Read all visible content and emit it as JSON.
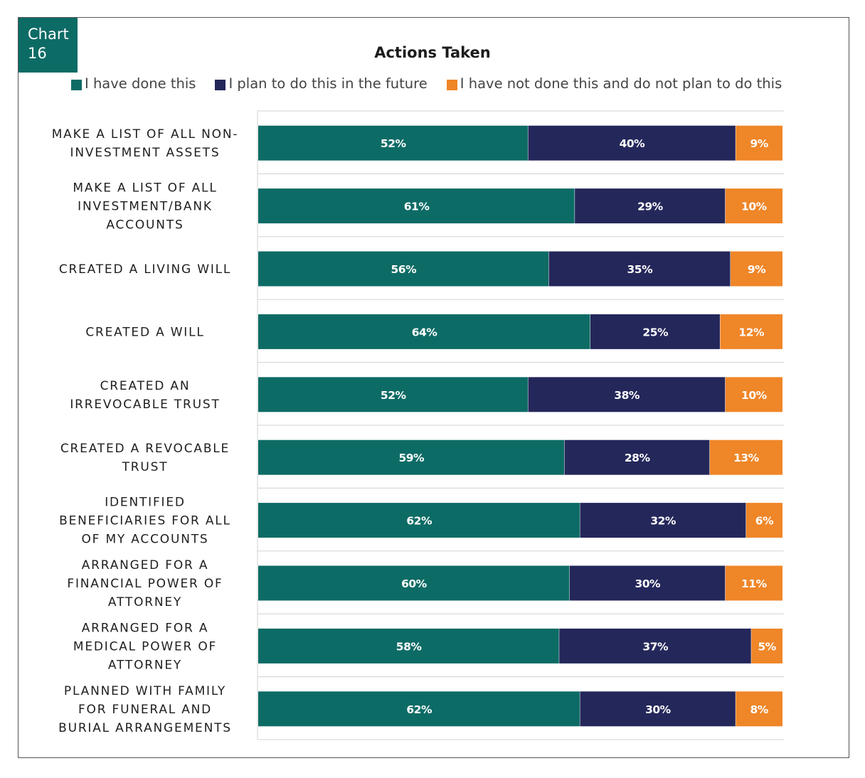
{
  "header": {
    "badge_line1": "Chart",
    "badge_line2": "16"
  },
  "colors": {
    "done": "#0d6b65",
    "plan": "#24275a",
    "not": "#ef8628"
  },
  "chart_data": {
    "type": "bar",
    "orientation": "horizontal",
    "stacked": true,
    "title": "Actions Taken",
    "legend_position": "top",
    "xlim": [
      0,
      101
    ],
    "grid": true,
    "categories": [
      [
        "MAKE A LIST OF ALL NON-",
        "INVESTMENT ASSETS"
      ],
      [
        "MAKE A LIST OF ALL",
        "INVESTMENT/BANK",
        "ACCOUNTS"
      ],
      [
        "CREATED A LIVING WILL"
      ],
      [
        "CREATED A WILL"
      ],
      [
        "CREATED AN",
        "IRREVOCABLE TRUST"
      ],
      [
        "CREATED A REVOCABLE",
        "TRUST"
      ],
      [
        "IDENTIFIED",
        "BENEFICIARIES FOR ALL",
        "OF MY ACCOUNTS"
      ],
      [
        "ARRANGED FOR A",
        "FINANCIAL POWER OF",
        "ATTORNEY"
      ],
      [
        "ARRANGED FOR A",
        "MEDICAL POWER OF",
        "ATTORNEY"
      ],
      [
        "PLANNED WITH FAMILY",
        "FOR FUNERAL AND",
        "BURIAL ARRANGEMENTS"
      ]
    ],
    "series": [
      {
        "name": "I have done this",
        "values": [
          52,
          61,
          56,
          64,
          52,
          59,
          62,
          60,
          58,
          62
        ]
      },
      {
        "name": "I plan to do this in the future",
        "values": [
          40,
          29,
          35,
          25,
          38,
          28,
          32,
          30,
          37,
          30
        ]
      },
      {
        "name": "I have not done this and do not plan to do this",
        "values": [
          9,
          10,
          9,
          12,
          10,
          13,
          6,
          11,
          5,
          8
        ]
      }
    ],
    "value_suffix": "%"
  }
}
